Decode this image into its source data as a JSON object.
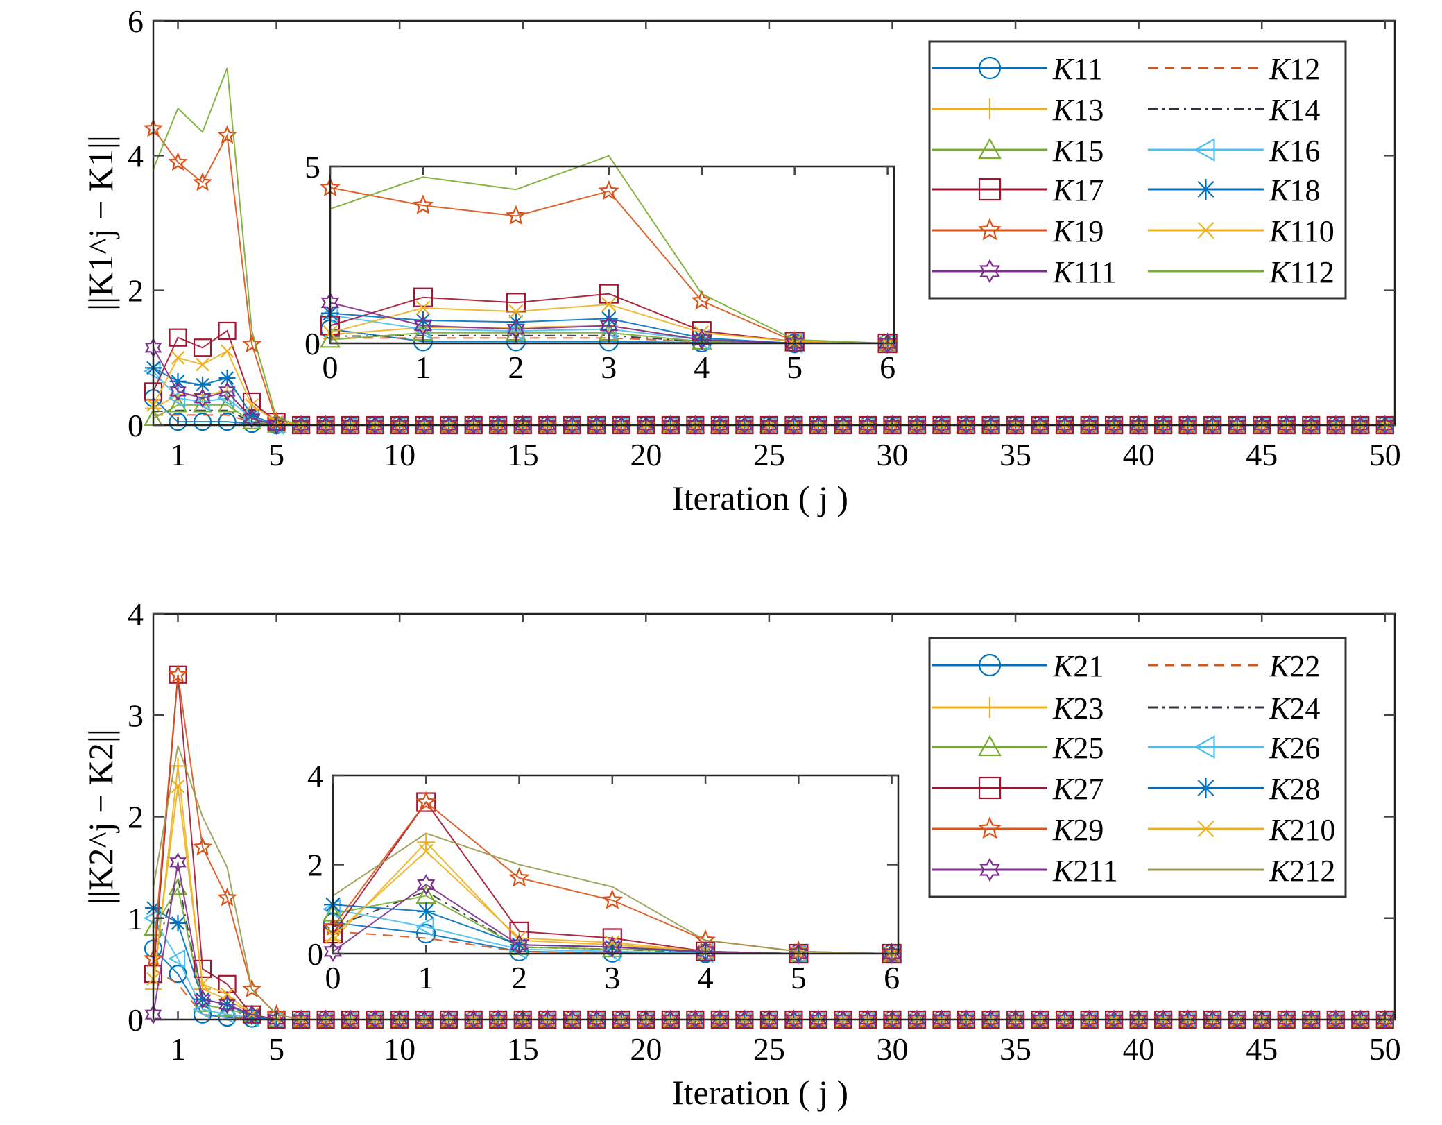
{
  "chart_data": [
    {
      "type": "line",
      "panel": "top",
      "xlabel": "Iteration ( j )",
      "ylabel": "||K1^j − K1||",
      "ylabel_parts": {
        "pre": "||K1",
        "sup": "j",
        "post": " − K1||"
      },
      "xlim": [
        0,
        50.4
      ],
      "ylim": [
        0,
        6
      ],
      "xticks": [
        1,
        5,
        10,
        15,
        20,
        25,
        30,
        35,
        40,
        45,
        50
      ],
      "yticks": [
        0,
        2,
        4,
        6
      ],
      "x": "0..50",
      "values_note": "values listed for j = 0..6; remaining iterations 7..50 are 0",
      "remaining_value": 0,
      "legend_position": "top-right",
      "inset": {
        "xlim": [
          0,
          6.07
        ],
        "ylim": [
          0,
          5
        ],
        "xticks": [
          0,
          1,
          2,
          3,
          4,
          5,
          6
        ],
        "yticks": [
          0,
          5
        ]
      },
      "series": [
        {
          "name": "K11",
          "color": "#0072BD",
          "marker": "circle",
          "dash": "solid",
          "values": [
            0.4,
            0.05,
            0.05,
            0.05,
            0.02,
            0,
            0
          ]
        },
        {
          "name": "K12",
          "color": "#D95319",
          "marker": "none",
          "dash": "dashed",
          "values": [
            0.15,
            0.15,
            0.15,
            0.15,
            0.05,
            0,
            0
          ]
        },
        {
          "name": "K13",
          "color": "#EDB120",
          "marker": "plus",
          "dash": "solid",
          "values": [
            0.25,
            0.45,
            0.45,
            0.5,
            0.1,
            0,
            0
          ]
        },
        {
          "name": "K14",
          "color": "#333340",
          "marker": "none",
          "dash": "dashdot",
          "values": [
            0.2,
            0.22,
            0.22,
            0.22,
            0.05,
            0,
            0
          ]
        },
        {
          "name": "K15",
          "color": "#77AC30",
          "marker": "triangle",
          "dash": "solid",
          "values": [
            0.1,
            0.3,
            0.3,
            0.3,
            0.05,
            0,
            0
          ]
        },
        {
          "name": "K16",
          "color": "#4DBEEE",
          "marker": "tri-left",
          "dash": "solid",
          "values": [
            0.8,
            0.4,
            0.35,
            0.4,
            0.1,
            0,
            0
          ]
        },
        {
          "name": "K17",
          "color": "#A2142F",
          "marker": "square",
          "dash": "solid",
          "values": [
            0.5,
            1.3,
            1.15,
            1.4,
            0.35,
            0.05,
            0
          ]
        },
        {
          "name": "K18",
          "color": "#0072BD",
          "marker": "asterisk",
          "dash": "solid",
          "values": [
            0.85,
            0.65,
            0.6,
            0.7,
            0.15,
            0,
            0
          ]
        },
        {
          "name": "K19",
          "color": "#D95319",
          "marker": "star",
          "dash": "solid",
          "values": [
            4.4,
            3.9,
            3.6,
            4.3,
            1.2,
            0.05,
            0
          ]
        },
        {
          "name": "K110",
          "color": "#EDB120",
          "marker": "x",
          "dash": "solid",
          "values": [
            0.3,
            1.0,
            0.9,
            1.1,
            0.3,
            0.05,
            0
          ]
        },
        {
          "name": "K111",
          "color": "#7E2F8E",
          "marker": "hexagram",
          "dash": "solid",
          "values": [
            1.15,
            0.5,
            0.4,
            0.5,
            0.1,
            0,
            0
          ]
        },
        {
          "name": "K112",
          "color": "#77AC30",
          "marker": "none",
          "dash": "solid",
          "values": [
            3.8,
            4.7,
            4.35,
            5.3,
            1.4,
            0.1,
            0
          ]
        }
      ]
    },
    {
      "type": "line",
      "panel": "bottom",
      "xlabel": "Iteration ( j )",
      "ylabel": "||K2^j − K2||",
      "ylabel_parts": {
        "pre": "||K2",
        "sup": "j",
        "post": " − K2||"
      },
      "xlim": [
        0,
        50.4
      ],
      "ylim": [
        0,
        4
      ],
      "xticks": [
        1,
        5,
        10,
        15,
        20,
        25,
        30,
        35,
        40,
        45,
        50
      ],
      "yticks": [
        0,
        1,
        2,
        3,
        4
      ],
      "x": "0..50",
      "values_note": "values listed for j = 0..6; remaining iterations 7..50 are 0",
      "remaining_value": 0,
      "legend_position": "top-right",
      "inset": {
        "xlim": [
          0,
          6.07
        ],
        "ylim": [
          0,
          4
        ],
        "xticks": [
          0,
          1,
          2,
          3,
          4,
          5,
          6
        ],
        "yticks": [
          0,
          2,
          4
        ]
      },
      "series": [
        {
          "name": "K21",
          "color": "#0072BD",
          "marker": "circle",
          "dash": "solid",
          "values": [
            0.7,
            0.45,
            0.05,
            0.02,
            0.01,
            0,
            0
          ]
        },
        {
          "name": "K22",
          "color": "#D95319",
          "marker": "none",
          "dash": "dashed",
          "values": [
            0.5,
            0.35,
            0.05,
            0.02,
            0.01,
            0,
            0
          ]
        },
        {
          "name": "K23",
          "color": "#EDB120",
          "marker": "plus",
          "dash": "solid",
          "values": [
            0.3,
            2.5,
            0.3,
            0.2,
            0.05,
            0,
            0
          ]
        },
        {
          "name": "K24",
          "color": "#333340",
          "marker": "none",
          "dash": "dashdot",
          "values": [
            0.6,
            1.4,
            0.15,
            0.1,
            0.03,
            0,
            0
          ]
        },
        {
          "name": "K25",
          "color": "#77AC30",
          "marker": "triangle",
          "dash": "solid",
          "values": [
            0.9,
            1.3,
            0.15,
            0.1,
            0.05,
            0,
            0
          ]
        },
        {
          "name": "K26",
          "color": "#4DBEEE",
          "marker": "tri-left",
          "dash": "solid",
          "values": [
            1.0,
            0.6,
            0.1,
            0.05,
            0.02,
            0,
            0
          ]
        },
        {
          "name": "K27",
          "color": "#A2142F",
          "marker": "square",
          "dash": "solid",
          "values": [
            0.45,
            3.4,
            0.5,
            0.35,
            0.05,
            0,
            0
          ]
        },
        {
          "name": "K28",
          "color": "#0072BD",
          "marker": "asterisk",
          "dash": "solid",
          "values": [
            1.1,
            0.95,
            0.2,
            0.15,
            0.03,
            0,
            0
          ]
        },
        {
          "name": "K29",
          "color": "#D95319",
          "marker": "star",
          "dash": "solid",
          "values": [
            0.6,
            3.4,
            1.7,
            1.2,
            0.3,
            0.05,
            0
          ]
        },
        {
          "name": "K210",
          "color": "#EDB120",
          "marker": "x",
          "dash": "solid",
          "values": [
            0.4,
            2.3,
            0.35,
            0.25,
            0.05,
            0,
            0
          ]
        },
        {
          "name": "K211",
          "color": "#7E2F8E",
          "marker": "hexagram",
          "dash": "solid",
          "values": [
            0.05,
            1.55,
            0.2,
            0.15,
            0.05,
            0,
            0
          ]
        },
        {
          "name": "K212",
          "color": "#9A9A50",
          "marker": "none",
          "dash": "solid",
          "values": [
            1.3,
            2.7,
            2.0,
            1.5,
            0.3,
            0.05,
            0
          ]
        }
      ]
    }
  ]
}
